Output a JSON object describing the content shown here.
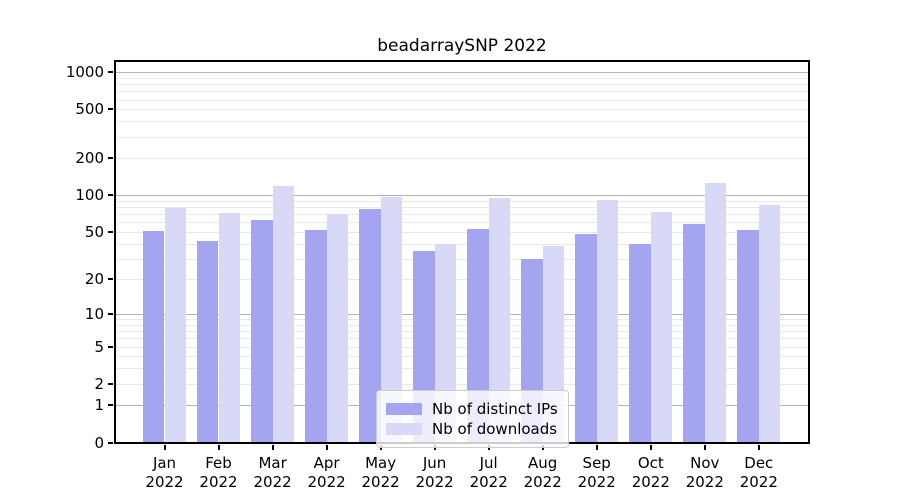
{
  "title": "beadarraySNP 2022",
  "chart_data": {
    "type": "bar",
    "title": "beadarraySNP 2022",
    "categories": [
      "Jan 2022",
      "Feb 2022",
      "Mar 2022",
      "Apr 2022",
      "May 2022",
      "Jun 2022",
      "Jul 2022",
      "Aug 2022",
      "Sep 2022",
      "Oct 2022",
      "Nov 2022",
      "Dec 2022"
    ],
    "series": [
      {
        "name": "Nb of distinct IPs",
        "color": "#a4a4f0",
        "values": [
          51,
          42,
          63,
          52,
          77,
          35,
          53,
          30,
          48,
          40,
          58,
          52
        ]
      },
      {
        "name": "Nb of downloads",
        "color": "#d8d8f7",
        "values": [
          79,
          71,
          120,
          70,
          96,
          40,
          94,
          38,
          92,
          73,
          125,
          83
        ]
      }
    ],
    "yscale": "log1p",
    "yticks": [
      1000,
      500,
      200,
      100,
      50,
      20,
      10,
      5,
      2,
      1,
      0
    ],
    "ylim": [
      0,
      1250
    ],
    "xlabel": "",
    "ylabel": "",
    "grid": "on",
    "legend_position": "lower center"
  },
  "colors": {
    "bar_distinct_ips": "#a4a4f0",
    "bar_downloads": "#d8d8f7",
    "grid_major": "#b3b3b3",
    "grid_minor": "#e9e9e9",
    "spine": "#000000",
    "legend_border": "#cccccc",
    "background": "#ffffff"
  }
}
